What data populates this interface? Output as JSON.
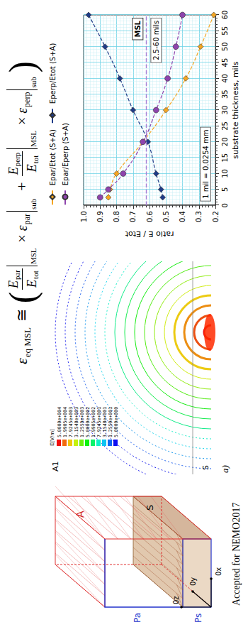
{
  "equation": {
    "lhs": {
      "symbol": "ε",
      "sub": "eq MSL"
    },
    "relation": "≅",
    "plus": "+",
    "times": "×",
    "terms": [
      {
        "num": {
          "symbol": "E",
          "sub": "par"
        },
        "den": {
          "symbol": "E",
          "sub": "tot"
        },
        "at": "MSL",
        "factor": {
          "symbol": "ε",
          "sub": "par"
        },
        "factor_at": "sub"
      },
      {
        "num": {
          "symbol": "E",
          "sub": "perp"
        },
        "den": {
          "symbol": "E",
          "sub": "tot"
        },
        "at": "MSL",
        "factor": {
          "symbol": "ε",
          "sub": "perp"
        },
        "factor_at": "sub"
      }
    ]
  },
  "diagram": {
    "labels": {
      "air": "A",
      "substrate": "S",
      "air_port": "Pa",
      "substrate_port": "Ps",
      "x_axis": "0x",
      "y_axis": "0y",
      "z_axis": "0z"
    }
  },
  "field_plot": {
    "panel_label": "a)",
    "labels": [
      "A1",
      "S"
    ],
    "color_scale": {
      "title": "E[V/m]",
      "labels": [
        "5.0000e+004",
        "1.9905e+004",
        "7.9245e+003",
        "3.1548e+003",
        "1.2559e+003",
        "5.0000e+002",
        "1.9905e+002",
        "7.9245e+001",
        "3.1548e+001",
        "1.2559e+001",
        "5.0000e+000"
      ]
    }
  },
  "chart_data": {
    "type": "line",
    "x_label": "substrate thickness, mils",
    "y_label": "ratio E / Etot",
    "x": [
      2.5,
      5,
      10,
      20,
      30,
      40,
      50,
      60
    ],
    "series": [
      {
        "name": "Epar/Etot (S+A)",
        "color": "#f5a623",
        "marker": "diamond",
        "line_style": "dashed",
        "values": [
          0.85,
          0.84,
          0.8,
          0.64,
          0.5,
          0.38,
          0.29,
          0.21
        ]
      },
      {
        "name": "Eperp/Etot (S+A)",
        "color": "#1f3c88",
        "marker": "diamond",
        "line_style": "dashed",
        "values": [
          0.52,
          0.53,
          0.56,
          0.61,
          0.7,
          0.78,
          0.87,
          0.97
        ]
      },
      {
        "name": "Epar/Eperp (S+A)",
        "color": "#8e44ad",
        "marker": "circle",
        "line_style": "dashed",
        "values": [
          0.9,
          0.85,
          0.76,
          0.64,
          0.56,
          0.49,
          0.44,
          0.4
        ]
      }
    ],
    "xlim": [
      0,
      60
    ],
    "xticks": [
      0,
      5,
      10,
      15,
      20,
      25,
      30,
      35,
      40,
      45,
      50,
      55,
      60
    ],
    "ylim": [
      0.2,
      1
    ],
    "yticks": [
      0.2,
      0.3,
      0.4,
      0.5,
      0.6,
      0.7,
      0.8,
      0.9,
      {
        "value": 1,
        "label": "1.0"
      }
    ],
    "grid": true,
    "legend": "top",
    "reference_lines": [
      {
        "y": 0.62,
        "label": "MSL"
      }
    ],
    "annotations": [
      {
        "text": "2.5-60 mils",
        "x": 52,
        "y": 0.56
      },
      {
        "text": "1 mil = 0.0254 mm",
        "x": 13,
        "y": 0.26
      }
    ]
  },
  "footer": "Accepted for NEMO2017"
}
